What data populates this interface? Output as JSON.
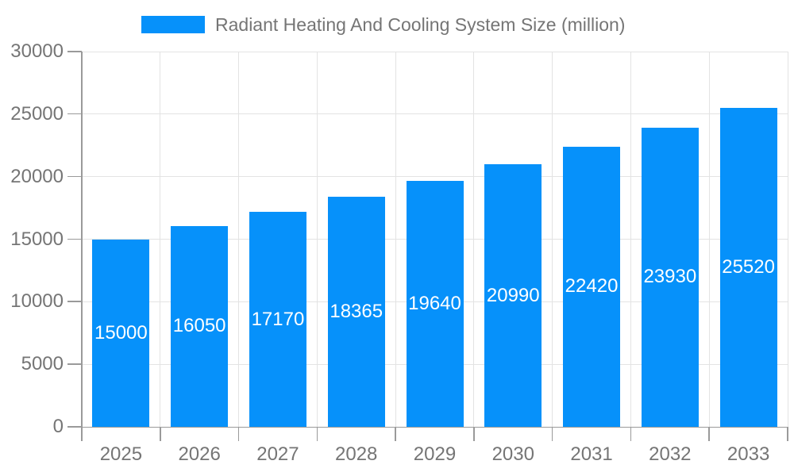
{
  "chart_data": {
    "type": "bar",
    "title": "Radiant Heating And Cooling System Size (million)",
    "categories": [
      "2025",
      "2026",
      "2027",
      "2028",
      "2029",
      "2030",
      "2031",
      "2032",
      "2033"
    ],
    "values": [
      15000,
      16050,
      17170,
      18365,
      19640,
      20990,
      22420,
      23930,
      25520
    ],
    "xlabel": "",
    "ylabel": "",
    "ylim": [
      0,
      30000
    ],
    "yticks": [
      0,
      5000,
      10000,
      15000,
      20000,
      25000,
      30000
    ],
    "grid": true,
    "legend_position": "top",
    "bar_labels": "inside-center"
  },
  "colors": {
    "bar": "#0691fa",
    "grid": "#e3e3e3",
    "axis": "#9a9a9a",
    "tick_text": "#757575",
    "legend_text": "#757575",
    "bar_label_text": "#ffffff"
  }
}
